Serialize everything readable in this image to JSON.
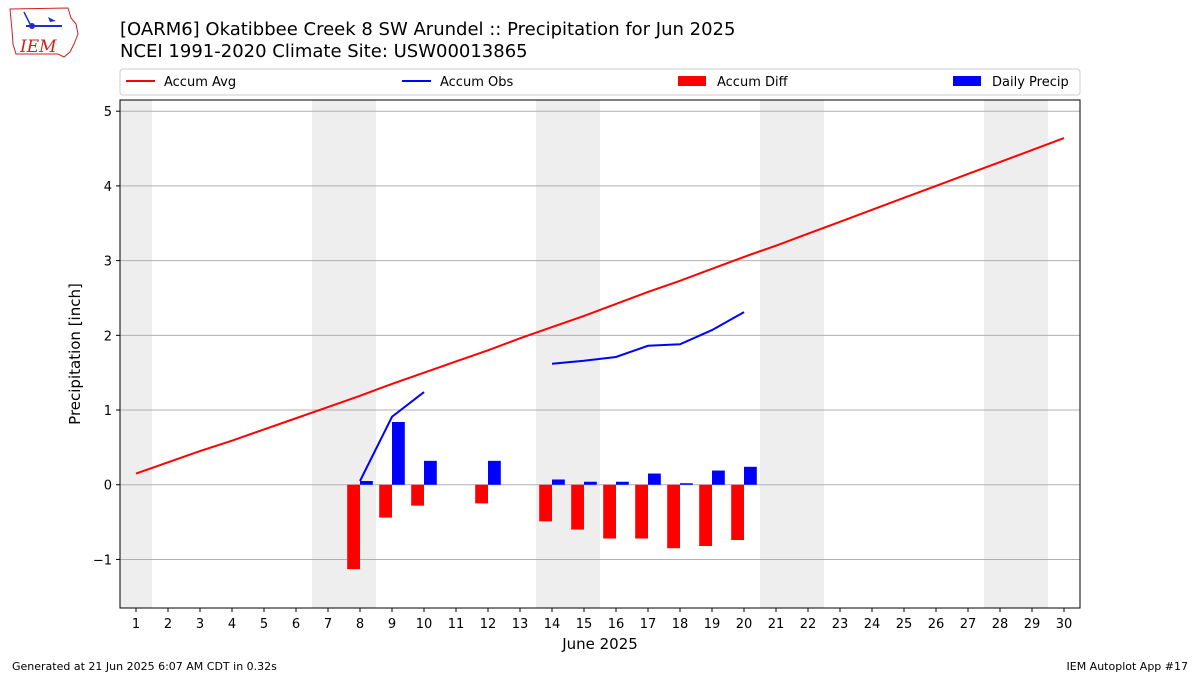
{
  "header": {
    "title_line1": "[OARM6] Okatibbee Creek 8 SW Arundel :: Precipitation for Jun 2025",
    "title_line2": "NCEI 1991-2020 Climate Site: USW00013865",
    "logo_text": "IEM"
  },
  "footer": {
    "left": "Generated at 21 Jun 2025 6:07 AM CDT in 0.32s",
    "right": "IEM Autoplot App #17"
  },
  "colors": {
    "accum_avg": "#ff0000",
    "accum_obs": "#0000ff",
    "accum_diff": "#ff0000",
    "daily_precip": "#0000ff",
    "weekend_band": "#eeeeee",
    "grid": "#b0b0b0"
  },
  "chart_data": {
    "type": "bar",
    "xlabel": "June 2025",
    "ylabel": "Precipitation [inch]",
    "xlim": [
      0.5,
      30.5
    ],
    "ylim": [
      -1.65,
      5.15
    ],
    "y_ticks": [
      -1,
      0,
      1,
      2,
      3,
      4,
      5
    ],
    "y_tick_labels": [
      "−1",
      "0",
      "1",
      "2",
      "3",
      "4",
      "5"
    ],
    "x_ticks": [
      1,
      2,
      3,
      4,
      5,
      6,
      7,
      8,
      9,
      10,
      11,
      12,
      13,
      14,
      15,
      16,
      17,
      18,
      19,
      20,
      21,
      22,
      23,
      24,
      25,
      26,
      27,
      28,
      29,
      30
    ],
    "x_tick_labels": [
      "1",
      "2",
      "3",
      "4",
      "5",
      "6",
      "7",
      "8",
      "9",
      "10",
      "11",
      "12",
      "13",
      "14",
      "15",
      "16",
      "17",
      "18",
      "19",
      "20",
      "21",
      "22",
      "23",
      "24",
      "25",
      "26",
      "27",
      "28",
      "29",
      "30"
    ],
    "grid": "horizontal",
    "legend_position": "top",
    "weekend_bands": [
      [
        0.5,
        1.5
      ],
      [
        6.5,
        8.5
      ],
      [
        13.5,
        15.5
      ],
      [
        20.5,
        22.5
      ],
      [
        27.5,
        29.5
      ]
    ],
    "series": [
      {
        "name": "Accum Avg",
        "kind": "line",
        "x": [
          1,
          2,
          3,
          4,
          5,
          6,
          7,
          8,
          9,
          10,
          11,
          12,
          13,
          14,
          15,
          16,
          17,
          18,
          19,
          20,
          21,
          22,
          23,
          24,
          25,
          26,
          27,
          28,
          29,
          30
        ],
        "values": [
          0.15,
          0.3,
          0.45,
          0.59,
          0.74,
          0.89,
          1.04,
          1.19,
          1.35,
          1.5,
          1.65,
          1.8,
          1.96,
          2.11,
          2.26,
          2.42,
          2.58,
          2.73,
          2.89,
          3.05,
          3.2,
          3.36,
          3.52,
          3.68,
          3.84,
          4.0,
          4.16,
          4.32,
          4.48,
          4.64
        ]
      },
      {
        "name": "Accum Obs",
        "kind": "line",
        "segments": [
          {
            "x": [
              8,
              9,
              10
            ],
            "values": [
              0.05,
              0.91,
              1.24
            ]
          },
          {
            "x": [
              14,
              15,
              16,
              17,
              18,
              19,
              20
            ],
            "values": [
              1.62,
              1.66,
              1.71,
              1.86,
              1.88,
              2.07,
              2.31
            ]
          }
        ]
      },
      {
        "name": "Accum Diff",
        "kind": "bar",
        "offset": -0.2,
        "x": [
          8,
          9,
          10,
          12,
          14,
          15,
          16,
          17,
          18,
          19,
          20
        ],
        "values": [
          -1.13,
          -0.44,
          -0.28,
          -0.25,
          -0.49,
          -0.6,
          -0.72,
          -0.72,
          -0.85,
          -0.82,
          -0.74
        ]
      },
      {
        "name": "Daily Precip",
        "kind": "bar",
        "offset": 0.2,
        "x": [
          8,
          9,
          10,
          12,
          14,
          15,
          16,
          17,
          18,
          19,
          20
        ],
        "values": [
          0.05,
          0.84,
          0.32,
          0.32,
          0.07,
          0.04,
          0.04,
          0.15,
          0.02,
          0.19,
          0.24
        ]
      }
    ]
  }
}
